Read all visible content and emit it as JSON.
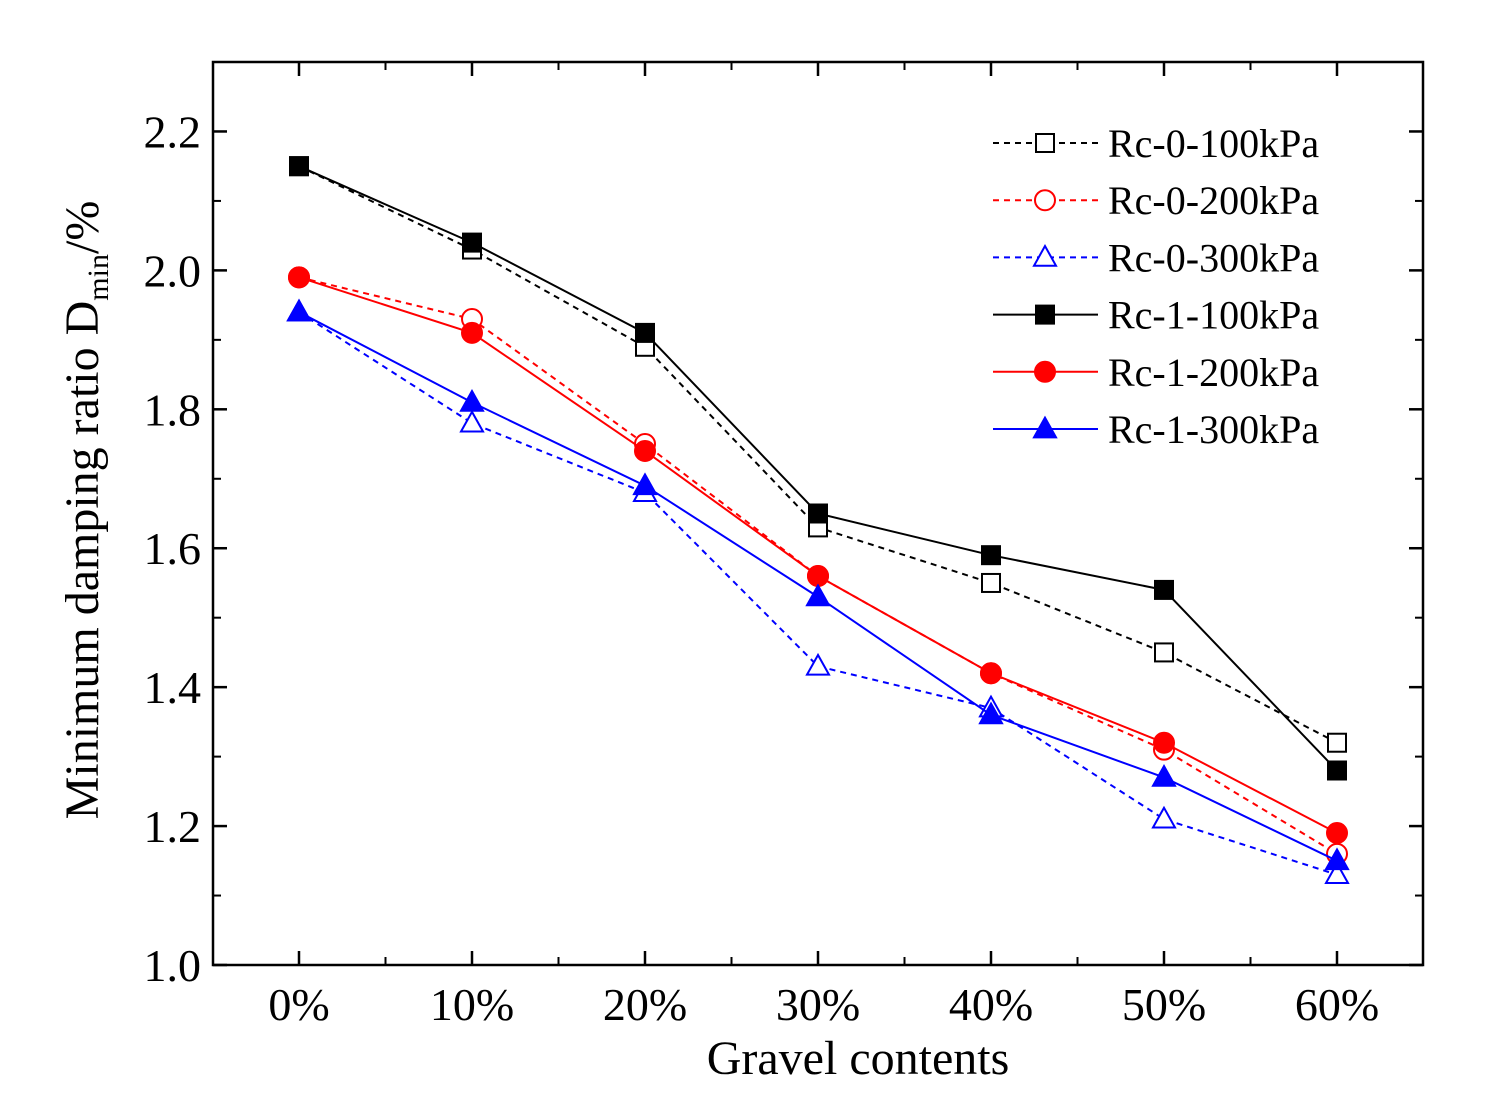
{
  "chart_data": {
    "type": "line",
    "title": "",
    "xlabel": "Gravel contents",
    "ylabel": {
      "main": "Minimum damping ratio D",
      "subscript": "min",
      "suffix": "/%"
    },
    "categories": [
      "0%",
      "10%",
      "20%",
      "30%",
      "40%",
      "50%",
      "60%"
    ],
    "ylim": [
      1.0,
      2.3
    ],
    "yticks": [
      {
        "value": 1.0,
        "label": "1.0"
      },
      {
        "value": 1.2,
        "label": "1.2"
      },
      {
        "value": 1.4,
        "label": "1.4"
      },
      {
        "value": 1.6,
        "label": "1.6"
      },
      {
        "value": 1.8,
        "label": "1.8"
      },
      {
        "value": 2.0,
        "label": "2.0"
      },
      {
        "value": 2.2,
        "label": "2.2"
      }
    ],
    "grid": false,
    "legend_position": "top-right",
    "series": [
      {
        "name": "Rc-0-100kPa",
        "color": "#000000",
        "marker": "square",
        "filled": false,
        "dashed": true,
        "values": [
          2.15,
          2.03,
          1.89,
          1.63,
          1.55,
          1.45,
          1.32
        ]
      },
      {
        "name": "Rc-0-200kPa",
        "color": "#ff0000",
        "marker": "circle",
        "filled": false,
        "dashed": true,
        "values": [
          1.99,
          1.93,
          1.75,
          1.56,
          1.42,
          1.31,
          1.16
        ]
      },
      {
        "name": "Rc-0-300kPa",
        "color": "#0000ff",
        "marker": "triangle",
        "filled": false,
        "dashed": true,
        "values": [
          1.94,
          1.78,
          1.68,
          1.43,
          1.37,
          1.21,
          1.13
        ]
      },
      {
        "name": "Rc-1-100kPa",
        "color": "#000000",
        "marker": "square",
        "filled": true,
        "dashed": false,
        "values": [
          2.15,
          2.04,
          1.91,
          1.65,
          1.59,
          1.54,
          1.28
        ]
      },
      {
        "name": "Rc-1-200kPa",
        "color": "#ff0000",
        "marker": "circle",
        "filled": true,
        "dashed": false,
        "values": [
          1.99,
          1.91,
          1.74,
          1.56,
          1.42,
          1.32,
          1.19
        ]
      },
      {
        "name": "Rc-1-300kPa",
        "color": "#0000ff",
        "marker": "triangle",
        "filled": true,
        "dashed": false,
        "values": [
          1.94,
          1.81,
          1.69,
          1.53,
          1.36,
          1.27,
          1.15
        ]
      }
    ]
  }
}
